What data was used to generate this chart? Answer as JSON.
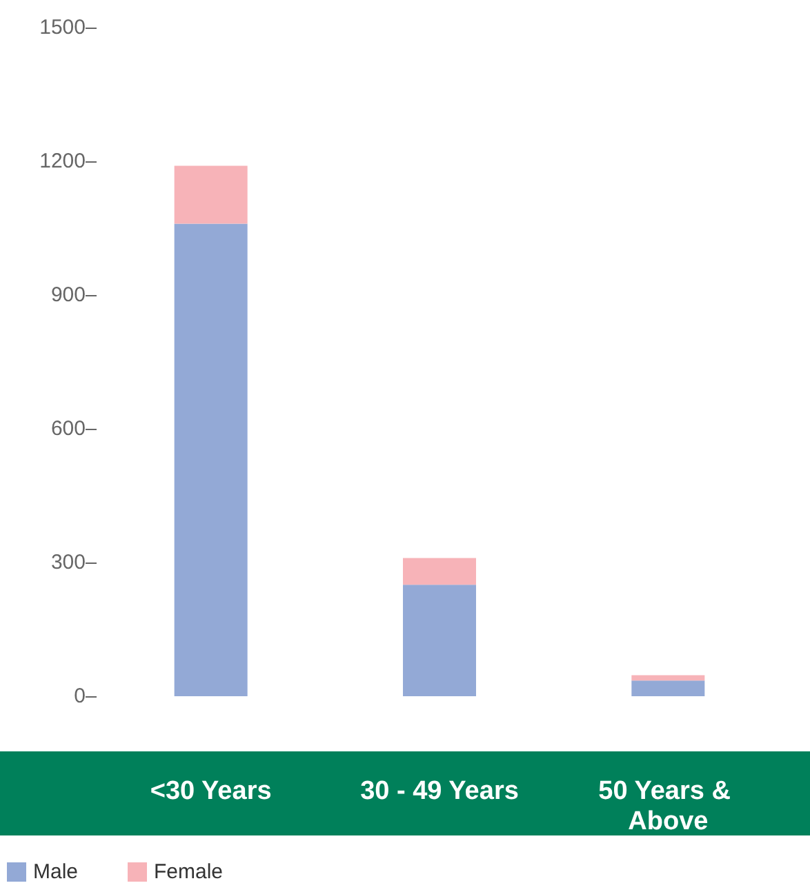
{
  "chart_data": {
    "type": "bar",
    "stacked": true,
    "categories": [
      "<30 Years",
      "30 - 49 Years",
      "50 Years & Above"
    ],
    "series": [
      {
        "name": "Male",
        "color": "#93a9d6",
        "values": [
          1060,
          250,
          35
        ]
      },
      {
        "name": "Female",
        "color": "#f7b3b8",
        "values": [
          130,
          60,
          12
        ]
      }
    ],
    "ylim": [
      0,
      1500
    ],
    "yticks": [
      0,
      300,
      600,
      900,
      1200,
      1500
    ],
    "grid": false,
    "legend": "bottom left"
  }
}
